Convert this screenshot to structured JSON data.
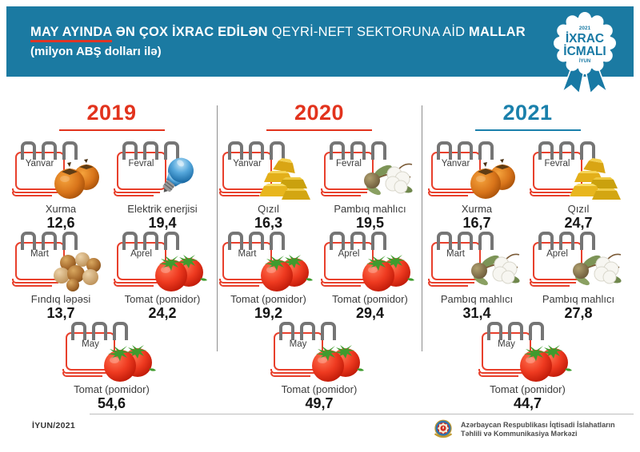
{
  "header": {
    "title_part1": "MAY AYINDA",
    "title_part2": "ƏN ÇOX İXRAC EDİLƏN",
    "title_part3": "QEYRİ-NEFT SEKTORUNA AİD",
    "title_part4": "MALLAR",
    "subtitle": "(milyon ABŞ dolları ilə)",
    "bg_color": "#1b7aa2",
    "highlight_underline_color": "#e03525"
  },
  "badge": {
    "top_small": "2021",
    "line1": "İXRAC",
    "line2": "İCMALI",
    "bottom_small": "İYUN",
    "color": "#1879a4"
  },
  "columns": [
    {
      "year": "2019",
      "accent": "#e2331d",
      "items": [
        {
          "month": "Yanvar",
          "product": "Xurma",
          "value": "12,6",
          "icon": "persimmon"
        },
        {
          "month": "Fevral",
          "product": "Elektrik enerjisi",
          "value": "19,4",
          "icon": "lightbulb"
        },
        {
          "month": "Mart",
          "product": "Fındıq ləpəsi",
          "value": "13,7",
          "icon": "hazelnut"
        },
        {
          "month": "Aprel",
          "product": "Tomat (pomidor)",
          "value": "24,2",
          "icon": "tomato"
        },
        {
          "month": "May",
          "product": "Tomat (pomidor)",
          "value": "54,6",
          "icon": "tomato"
        }
      ]
    },
    {
      "year": "2020",
      "accent": "#e2331d",
      "items": [
        {
          "month": "Yanvar",
          "product": "Qızıl",
          "value": "16,3",
          "icon": "gold"
        },
        {
          "month": "Fevral",
          "product": "Pambıq mahlıcı",
          "value": "19,5",
          "icon": "cotton"
        },
        {
          "month": "Mart",
          "product": "Tomat (pomidor)",
          "value": "19,2",
          "icon": "tomato"
        },
        {
          "month": "Aprel",
          "product": "Tomat (pomidor)",
          "value": "29,4",
          "icon": "tomato"
        },
        {
          "month": "May",
          "product": "Tomat (pomidor)",
          "value": "49,7",
          "icon": "tomato"
        }
      ]
    },
    {
      "year": "2021",
      "accent": "#1a80ab",
      "items": [
        {
          "month": "Yanvar",
          "product": "Xurma",
          "value": "16,7",
          "icon": "persimmon"
        },
        {
          "month": "Fevral",
          "product": "Qızıl",
          "value": "24,7",
          "icon": "gold"
        },
        {
          "month": "Mart",
          "product": "Pambıq mahlıcı",
          "value": "31,4",
          "icon": "cotton"
        },
        {
          "month": "Aprel",
          "product": "Pambıq mahlıcı",
          "value": "27,8",
          "icon": "cotton"
        },
        {
          "month": "May",
          "product": "Tomat (pomidor)",
          "value": "44,7",
          "icon": "tomato"
        }
      ]
    }
  ],
  "footer": {
    "date": "İYUN/2021",
    "org_line1": "Azərbaycan Respublikası İqtisadi İslahatların",
    "org_line2": "Təhlili və Kommunikasiya Mərkəzi"
  },
  "chart_data": {
    "type": "table",
    "title": "MAY AYINDA ƏN ÇOX İXRAC EDİLƏN QEYRİ-NEFT SEKTORUNA AİD MALLAR",
    "units": "milyon ABŞ dolları ilə",
    "categories": [
      "Yanvar",
      "Fevral",
      "Mart",
      "Aprel",
      "May"
    ],
    "series": [
      {
        "name": "2019",
        "products": [
          "Xurma",
          "Elektrik enerjisi",
          "Fındıq ləpəsi",
          "Tomat (pomidor)",
          "Tomat (pomidor)"
        ],
        "values": [
          12.6,
          19.4,
          13.7,
          24.2,
          54.6
        ]
      },
      {
        "name": "2020",
        "products": [
          "Qızıl",
          "Pambıq mahlıcı",
          "Tomat (pomidor)",
          "Tomat (pomidor)",
          "Tomat (pomidor)"
        ],
        "values": [
          16.3,
          19.5,
          19.2,
          29.4,
          49.7
        ]
      },
      {
        "name": "2021",
        "products": [
          "Xurma",
          "Qızıl",
          "Pambıq mahlıcı",
          "Pambıq mahlıcı",
          "Tomat (pomidor)"
        ],
        "values": [
          16.7,
          24.7,
          31.4,
          27.8,
          44.7
        ]
      }
    ]
  }
}
